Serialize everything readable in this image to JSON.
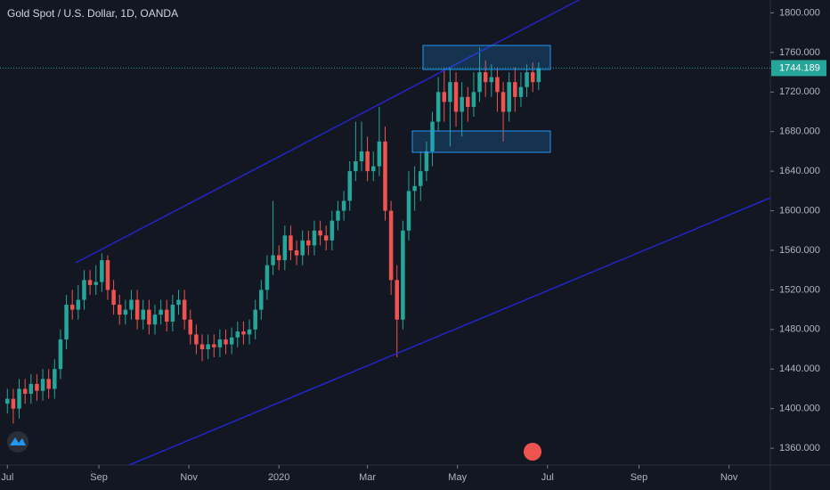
{
  "chart_data": {
    "type": "candlestick",
    "title": "Gold Spot / U.S. Dollar, 1D, OANDA",
    "up_color": "#26a69a",
    "down_color": "#ef5350",
    "grid": false,
    "x": [
      0,
      4,
      8,
      12,
      16,
      20,
      24,
      28,
      32,
      36,
      40,
      44,
      48,
      52,
      56,
      60,
      64,
      68,
      72,
      76,
      80,
      84,
      88,
      92,
      96,
      100,
      104,
      108,
      112,
      116,
      120,
      124,
      128,
      132,
      136,
      140,
      144,
      148,
      152,
      156,
      160,
      164,
      168,
      172,
      176,
      180,
      184,
      188,
      192,
      196,
      200,
      204,
      208,
      212,
      216,
      220,
      224,
      228,
      232,
      236,
      240,
      244,
      248,
      252,
      256,
      260,
      264,
      268,
      272,
      276,
      280,
      284,
      288,
      292,
      296,
      300,
      304,
      308,
      312,
      316,
      320,
      324,
      328,
      332,
      336,
      340,
      344,
      348,
      352,
      356,
      360
    ],
    "open": [
      1405,
      1410,
      1400,
      1420,
      1415,
      1425,
      1418,
      1430,
      1420,
      1440,
      1470,
      1505,
      1500,
      1510,
      1530,
      1525,
      1528,
      1550,
      1520,
      1505,
      1495,
      1500,
      1510,
      1490,
      1500,
      1485,
      1495,
      1500,
      1488,
      1505,
      1510,
      1490,
      1475,
      1465,
      1460,
      1465,
      1462,
      1470,
      1465,
      1472,
      1478,
      1475,
      1480,
      1500,
      1520,
      1545,
      1555,
      1550,
      1575,
      1560,
      1555,
      1570,
      1565,
      1580,
      1575,
      1570,
      1590,
      1600,
      1610,
      1640,
      1650,
      1660,
      1640,
      1645,
      1670,
      1600,
      1530,
      1490,
      1580,
      1620,
      1625,
      1640,
      1660,
      1690,
      1720,
      1710,
      1730,
      1700,
      1715,
      1705,
      1720,
      1740,
      1730,
      1735,
      1720,
      1700,
      1730,
      1715,
      1725,
      1740,
      1730
    ],
    "high": [
      1420,
      1420,
      1430,
      1430,
      1435,
      1435,
      1440,
      1440,
      1450,
      1480,
      1515,
      1520,
      1525,
      1540,
      1540,
      1545,
      1557,
      1555,
      1530,
      1515,
      1510,
      1520,
      1520,
      1510,
      1510,
      1505,
      1510,
      1510,
      1515,
      1520,
      1520,
      1500,
      1485,
      1475,
      1475,
      1475,
      1480,
      1480,
      1482,
      1488,
      1488,
      1490,
      1510,
      1530,
      1555,
      1610,
      1565,
      1585,
      1585,
      1570,
      1580,
      1580,
      1590,
      1590,
      1585,
      1600,
      1610,
      1620,
      1650,
      1690,
      1690,
      1675,
      1660,
      1705,
      1685,
      1610,
      1545,
      1590,
      1640,
      1645,
      1660,
      1670,
      1700,
      1735,
      1745,
      1745,
      1740,
      1730,
      1725,
      1740,
      1765,
      1752,
      1748,
      1745,
      1730,
      1740,
      1745,
      1740,
      1748,
      1750,
      1750
    ],
    "low": [
      1395,
      1385,
      1390,
      1405,
      1405,
      1408,
      1408,
      1410,
      1410,
      1430,
      1460,
      1490,
      1490,
      1500,
      1515,
      1515,
      1518,
      1510,
      1495,
      1485,
      1485,
      1490,
      1480,
      1480,
      1475,
      1475,
      1485,
      1478,
      1478,
      1495,
      1480,
      1465,
      1455,
      1448,
      1450,
      1452,
      1452,
      1455,
      1455,
      1462,
      1465,
      1465,
      1470,
      1490,
      1510,
      1535,
      1540,
      1540,
      1550,
      1545,
      1545,
      1555,
      1555,
      1565,
      1560,
      1560,
      1580,
      1590,
      1600,
      1630,
      1640,
      1630,
      1630,
      1635,
      1590,
      1515,
      1452,
      1480,
      1570,
      1600,
      1610,
      1630,
      1645,
      1680,
      1690,
      1665,
      1685,
      1675,
      1690,
      1695,
      1710,
      1715,
      1715,
      1700,
      1670,
      1690,
      1700,
      1705,
      1715,
      1720,
      1722
    ],
    "close": [
      1410,
      1400,
      1420,
      1415,
      1425,
      1418,
      1430,
      1420,
      1440,
      1470,
      1505,
      1500,
      1510,
      1530,
      1525,
      1528,
      1550,
      1520,
      1505,
      1495,
      1500,
      1510,
      1490,
      1500,
      1485,
      1495,
      1500,
      1488,
      1505,
      1510,
      1490,
      1475,
      1465,
      1460,
      1465,
      1462,
      1470,
      1465,
      1472,
      1478,
      1475,
      1480,
      1500,
      1520,
      1545,
      1555,
      1550,
      1575,
      1560,
      1555,
      1570,
      1565,
      1580,
      1575,
      1570,
      1590,
      1600,
      1610,
      1640,
      1650,
      1660,
      1640,
      1645,
      1670,
      1600,
      1530,
      1490,
      1580,
      1620,
      1625,
      1640,
      1660,
      1690,
      1720,
      1710,
      1730,
      1700,
      1715,
      1705,
      1720,
      1740,
      1730,
      1735,
      1720,
      1700,
      1730,
      1715,
      1725,
      1740,
      1730,
      1744
    ],
    "current_price": 1744.189,
    "xlim": [
      -5,
      517
    ],
    "xticks": [
      {
        "value": 0,
        "label": "Jul"
      },
      {
        "value": 62,
        "label": "Sep"
      },
      {
        "value": 123,
        "label": "Nov"
      },
      {
        "value": 184,
        "label": "2020"
      },
      {
        "value": 244,
        "label": "Mar"
      },
      {
        "value": 305,
        "label": "May"
      },
      {
        "value": 366,
        "label": "Jul"
      },
      {
        "value": 428,
        "label": "Sep"
      },
      {
        "value": 489,
        "label": "Nov"
      }
    ],
    "ylim": [
      1343,
      1813
    ],
    "yticks": [
      {
        "value": 1360,
        "label": "1360.000"
      },
      {
        "value": 1400,
        "label": "1400.000"
      },
      {
        "value": 1440,
        "label": "1440.000"
      },
      {
        "value": 1480,
        "label": "1480.000"
      },
      {
        "value": 1520,
        "label": "1520.000"
      },
      {
        "value": 1560,
        "label": "1560.000"
      },
      {
        "value": 1600,
        "label": "1600.000"
      },
      {
        "value": 1640,
        "label": "1640.000"
      },
      {
        "value": 1680,
        "label": "1680.000"
      },
      {
        "value": 1720,
        "label": "1720.000"
      },
      {
        "value": 1760,
        "label": "1760.000"
      },
      {
        "value": 1800,
        "label": "1800.000"
      }
    ]
  }
}
